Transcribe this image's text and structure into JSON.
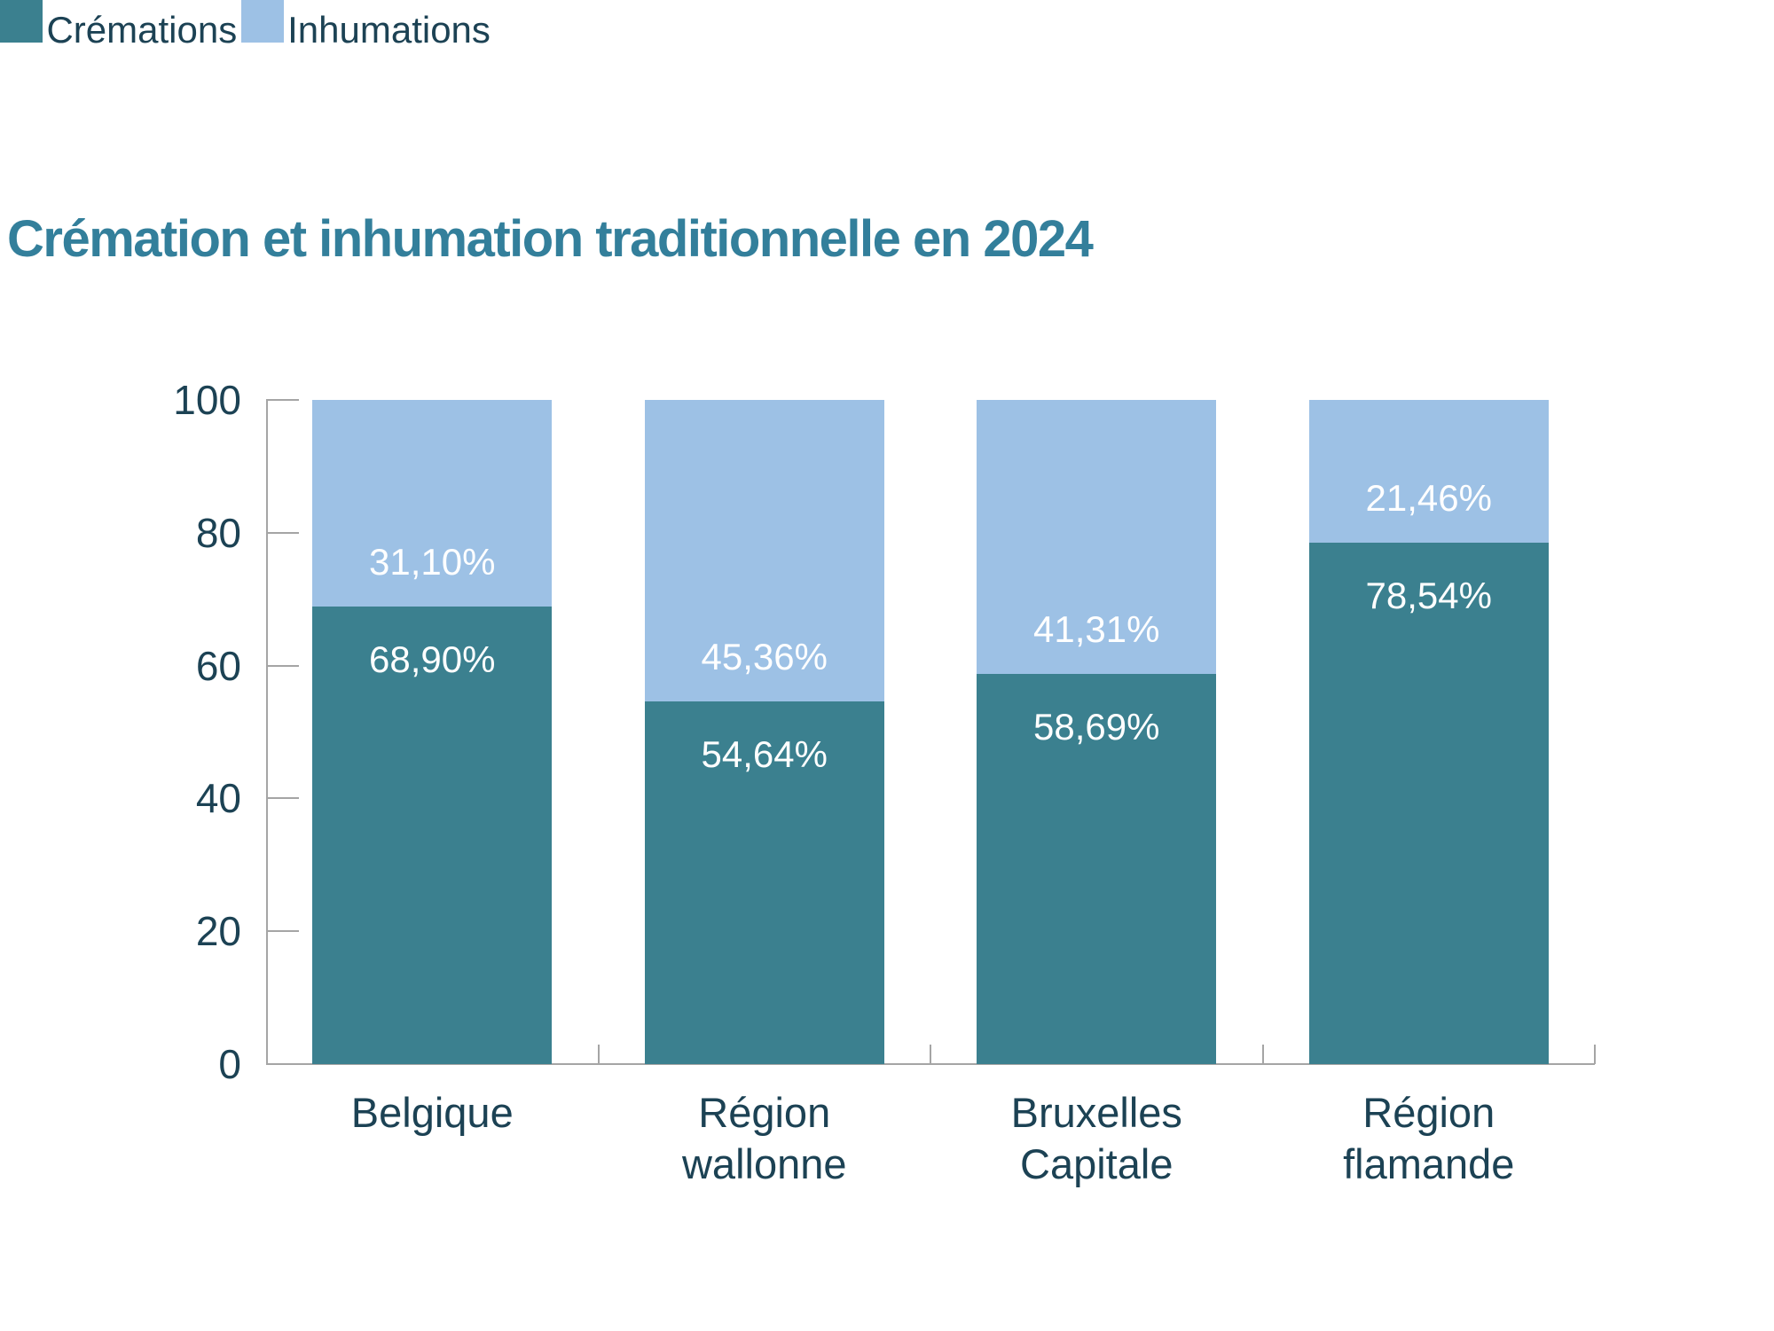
{
  "chart_data": {
    "type": "bar",
    "variant": "stacked-percentage",
    "title": "Crémation et inhumation traditionnelle en 2024",
    "categories": [
      "Belgique",
      "Région wallonne",
      "Bruxelles Capitale",
      "Région flamande"
    ],
    "categories_multiline": [
      "Belgique",
      "Région\nwallonne",
      "Bruxelles\nCapitale",
      "Région\nflamande"
    ],
    "series": [
      {
        "name": "Crémations",
        "color": "#3B808F",
        "values": [
          68.9,
          54.64,
          58.69,
          78.54
        ],
        "labels": [
          "68,90%",
          "54,64%",
          "58,69%",
          "78,54%"
        ]
      },
      {
        "name": "Inhumations",
        "color": "#9DC1E5",
        "values": [
          31.1,
          45.36,
          41.31,
          21.46
        ],
        "labels": [
          "31,10%",
          "45,36%",
          "41,31%",
          "21,46%"
        ]
      }
    ],
    "y_axis": {
      "ticks": [
        0,
        20,
        40,
        60,
        80,
        100
      ],
      "range": [
        0,
        100
      ],
      "label": ""
    },
    "x_axis": {
      "label": ""
    },
    "grid": false,
    "legend_position": "bottom-left",
    "colors": {
      "title": "#337F9B",
      "label_text": "#1C4254",
      "bar_label_text": "#FFFFFF",
      "axis": "#A5A5A5",
      "background": "#FFFFFF"
    }
  }
}
